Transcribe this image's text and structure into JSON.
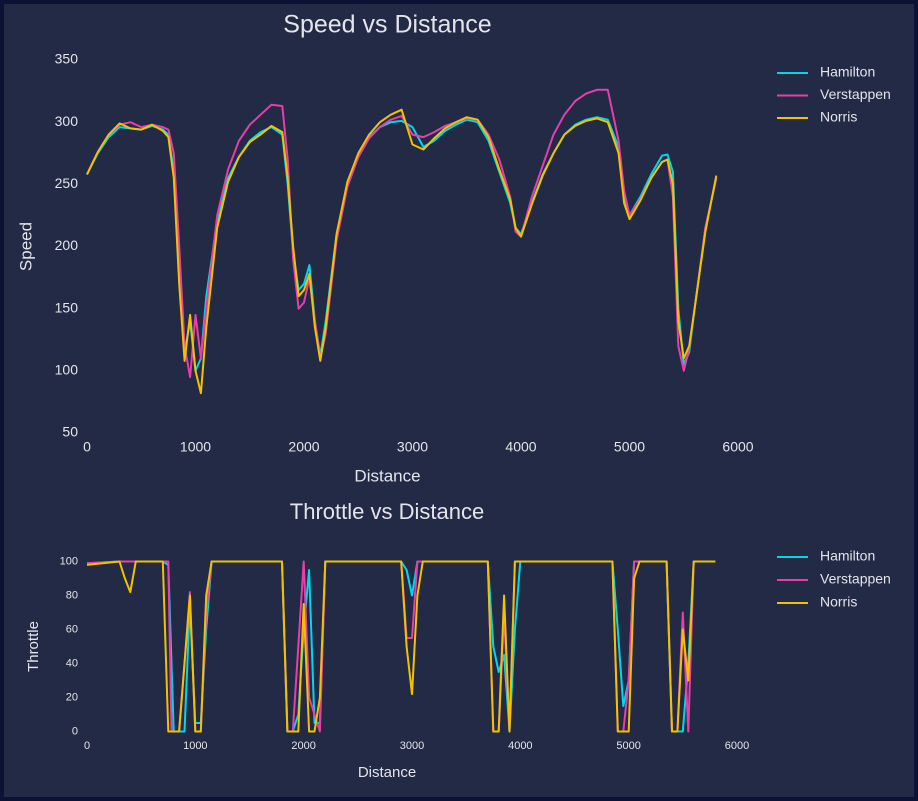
{
  "chart_data": [
    {
      "type": "line",
      "title": "Speed vs Distance",
      "x_label": "Distance",
      "y_label": "Speed",
      "xlim": [
        0,
        6000
      ],
      "ylim": [
        50,
        350
      ],
      "xticks": [
        0,
        1000,
        2000,
        3000,
        4000,
        5000,
        6000
      ],
      "yticks": [
        50,
        100,
        150,
        200,
        250,
        300,
        350
      ],
      "grid": false,
      "legend": "outside-upper-right",
      "x": [
        0,
        100,
        200,
        300,
        400,
        500,
        600,
        700,
        750,
        800,
        850,
        900,
        950,
        1000,
        1050,
        1100,
        1200,
        1300,
        1400,
        1500,
        1600,
        1700,
        1800,
        1850,
        1900,
        1950,
        2000,
        2050,
        2100,
        2150,
        2200,
        2300,
        2400,
        2500,
        2600,
        2700,
        2800,
        2900,
        3000,
        3100,
        3200,
        3300,
        3400,
        3500,
        3600,
        3700,
        3800,
        3900,
        3950,
        4000,
        4100,
        4200,
        4300,
        4400,
        4500,
        4600,
        4700,
        4800,
        4900,
        4950,
        5000,
        5100,
        5200,
        5300,
        5350,
        5400,
        5450,
        5500,
        5550,
        5600,
        5700,
        5800
      ],
      "series": [
        {
          "name": "Hamilton",
          "color": "#00d7e8",
          "values": [
            258,
            275,
            288,
            296,
            295,
            294,
            297,
            294,
            290,
            260,
            180,
            115,
            140,
            100,
            110,
            160,
            220,
            255,
            272,
            285,
            292,
            296,
            290,
            250,
            195,
            165,
            170,
            185,
            140,
            112,
            140,
            210,
            250,
            272,
            288,
            296,
            300,
            301,
            296,
            280,
            285,
            293,
            298,
            302,
            300,
            285,
            260,
            235,
            215,
            210,
            235,
            258,
            275,
            290,
            298,
            302,
            304,
            302,
            280,
            240,
            225,
            240,
            258,
            273,
            274,
            260,
            150,
            105,
            115,
            150,
            215,
            255
          ]
        },
        {
          "name": "Verstappen",
          "color": "#e83eaa",
          "values": [
            258,
            276,
            290,
            298,
            300,
            296,
            298,
            296,
            294,
            275,
            200,
            120,
            95,
            145,
            110,
            150,
            225,
            262,
            285,
            298,
            306,
            314,
            313,
            270,
            190,
            150,
            155,
            175,
            140,
            110,
            130,
            205,
            248,
            272,
            287,
            296,
            302,
            305,
            290,
            288,
            292,
            297,
            300,
            303,
            302,
            290,
            270,
            240,
            212,
            208,
            240,
            265,
            290,
            306,
            317,
            323,
            326,
            326,
            285,
            245,
            225,
            238,
            255,
            268,
            270,
            240,
            120,
            100,
            118,
            150,
            215,
            255
          ]
        },
        {
          "name": "Norris",
          "color": "#f2c200",
          "values": [
            258,
            276,
            290,
            299,
            295,
            294,
            298,
            293,
            288,
            255,
            170,
            108,
            145,
            100,
            82,
            135,
            215,
            252,
            272,
            284,
            290,
            297,
            292,
            255,
            200,
            160,
            165,
            178,
            135,
            108,
            135,
            210,
            252,
            275,
            290,
            300,
            306,
            310,
            282,
            278,
            287,
            295,
            300,
            304,
            302,
            288,
            262,
            238,
            215,
            208,
            234,
            257,
            275,
            290,
            297,
            301,
            303,
            300,
            275,
            235,
            222,
            237,
            255,
            268,
            270,
            250,
            140,
            110,
            120,
            150,
            212,
            257
          ]
        }
      ]
    },
    {
      "type": "line",
      "title": "Throttle vs Distance",
      "x_label": "Distance",
      "y_label": "Throttle",
      "xlim": [
        0,
        6000
      ],
      "ylim": [
        -5,
        105
      ],
      "xticks": [
        0,
        1000,
        2000,
        3000,
        4000,
        5000,
        6000
      ],
      "yticks": [
        0,
        20,
        40,
        60,
        80,
        100
      ],
      "grid": false,
      "legend": "outside-upper-right",
      "x": [
        0,
        300,
        350,
        400,
        450,
        700,
        750,
        780,
        800,
        850,
        900,
        950,
        1000,
        1050,
        1100,
        1150,
        1200,
        1800,
        1850,
        1900,
        1950,
        2000,
        2050,
        2100,
        2150,
        2200,
        2250,
        2900,
        2950,
        3000,
        3050,
        3100,
        3200,
        3700,
        3750,
        3800,
        3850,
        3900,
        3950,
        4000,
        4050,
        4100,
        4850,
        4900,
        4950,
        5000,
        5050,
        5100,
        5350,
        5400,
        5450,
        5500,
        5550,
        5600,
        5700,
        5800
      ],
      "series": [
        {
          "name": "Hamilton",
          "color": "#00d7e8",
          "values": [
            99,
            100,
            100,
            100,
            100,
            100,
            98,
            40,
            0,
            0,
            0,
            75,
            5,
            5,
            60,
            100,
            100,
            100,
            0,
            0,
            10,
            60,
            95,
            5,
            5,
            100,
            100,
            100,
            95,
            80,
            100,
            100,
            100,
            100,
            50,
            35,
            45,
            0,
            60,
            100,
            100,
            100,
            100,
            60,
            15,
            30,
            100,
            100,
            100,
            0,
            0,
            0,
            40,
            100,
            100,
            100
          ]
        },
        {
          "name": "Verstappen",
          "color": "#e83eaa",
          "values": [
            99,
            100,
            100,
            100,
            100,
            100,
            100,
            0,
            0,
            0,
            40,
            82,
            0,
            0,
            70,
            100,
            100,
            100,
            0,
            0,
            50,
            100,
            20,
            10,
            0,
            100,
            100,
            100,
            55,
            55,
            100,
            100,
            100,
            100,
            0,
            0,
            70,
            0,
            100,
            100,
            100,
            100,
            100,
            0,
            0,
            30,
            100,
            100,
            100,
            0,
            0,
            70,
            0,
            100,
            100,
            100
          ]
        },
        {
          "name": "Norris",
          "color": "#f2c200",
          "values": [
            98,
            100,
            90,
            82,
            100,
            100,
            0,
            0,
            0,
            0,
            40,
            80,
            0,
            0,
            80,
            100,
            100,
            100,
            0,
            0,
            0,
            75,
            0,
            0,
            20,
            100,
            100,
            100,
            50,
            22,
            80,
            100,
            100,
            100,
            0,
            0,
            80,
            0,
            100,
            100,
            100,
            100,
            100,
            0,
            0,
            0,
            90,
            100,
            100,
            0,
            0,
            60,
            30,
            100,
            100,
            100
          ]
        }
      ]
    }
  ]
}
